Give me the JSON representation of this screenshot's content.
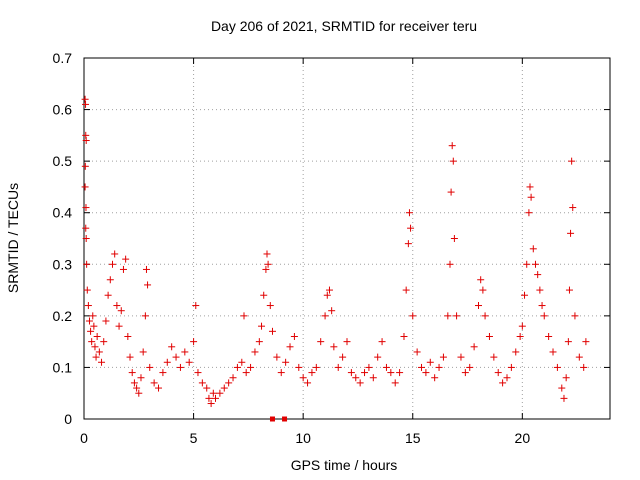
{
  "chart_data": {
    "type": "scatter",
    "title": "Day 206 of 2021, SRMTID for receiver teru",
    "xlabel": "GPS time / hours",
    "ylabel": "SRMTID / TECUs",
    "xlim": [
      0,
      24
    ],
    "ylim": [
      0,
      0.7
    ],
    "grid": true,
    "color": "#e00000",
    "xticks": [
      0,
      5,
      10,
      15,
      20
    ],
    "yticks": [
      0,
      0.1,
      0.2,
      0.3,
      0.4,
      0.5,
      0.6,
      0.7
    ],
    "xtick_labels": [
      "0",
      "5",
      "10",
      "15",
      "20"
    ],
    "ytick_labels": [
      "0",
      "0.1",
      "0.2",
      "0.3",
      "0.4",
      "0.5",
      "0.6",
      "0.7"
    ],
    "series": [
      {
        "name": "SRMTID",
        "marker": "plus",
        "points": [
          [
            0.05,
            0.62
          ],
          [
            0.07,
            0.61
          ],
          [
            0.08,
            0.55
          ],
          [
            0.1,
            0.54
          ],
          [
            0.06,
            0.49
          ],
          [
            0.05,
            0.45
          ],
          [
            0.09,
            0.41
          ],
          [
            0.08,
            0.37
          ],
          [
            0.1,
            0.35
          ],
          [
            0.12,
            0.3
          ],
          [
            0.15,
            0.25
          ],
          [
            0.2,
            0.22
          ],
          [
            0.25,
            0.19
          ],
          [
            0.3,
            0.17
          ],
          [
            0.35,
            0.15
          ],
          [
            0.4,
            0.2
          ],
          [
            0.45,
            0.18
          ],
          [
            0.5,
            0.14
          ],
          [
            0.55,
            0.12
          ],
          [
            0.6,
            0.16
          ],
          [
            0.7,
            0.13
          ],
          [
            0.8,
            0.11
          ],
          [
            0.9,
            0.15
          ],
          [
            1.0,
            0.19
          ],
          [
            1.1,
            0.24
          ],
          [
            1.2,
            0.27
          ],
          [
            1.3,
            0.3
          ],
          [
            1.4,
            0.32
          ],
          [
            1.5,
            0.22
          ],
          [
            1.6,
            0.18
          ],
          [
            1.7,
            0.21
          ],
          [
            1.8,
            0.29
          ],
          [
            1.9,
            0.31
          ],
          [
            2.0,
            0.16
          ],
          [
            2.1,
            0.12
          ],
          [
            2.2,
            0.09
          ],
          [
            2.3,
            0.07
          ],
          [
            2.4,
            0.06
          ],
          [
            2.5,
            0.05
          ],
          [
            2.6,
            0.08
          ],
          [
            2.7,
            0.13
          ],
          [
            2.8,
            0.2
          ],
          [
            2.85,
            0.29
          ],
          [
            2.9,
            0.26
          ],
          [
            3.0,
            0.1
          ],
          [
            3.2,
            0.07
          ],
          [
            3.4,
            0.06
          ],
          [
            3.6,
            0.09
          ],
          [
            3.8,
            0.11
          ],
          [
            4.0,
            0.14
          ],
          [
            4.2,
            0.12
          ],
          [
            4.4,
            0.1
          ],
          [
            4.6,
            0.13
          ],
          [
            4.8,
            0.11
          ],
          [
            5.0,
            0.15
          ],
          [
            5.1,
            0.22
          ],
          [
            5.2,
            0.09
          ],
          [
            5.4,
            0.07
          ],
          [
            5.6,
            0.06
          ],
          [
            5.7,
            0.04
          ],
          [
            5.8,
            0.03
          ],
          [
            5.9,
            0.05
          ],
          [
            6.0,
            0.04
          ],
          [
            6.2,
            0.05
          ],
          [
            6.4,
            0.06
          ],
          [
            6.6,
            0.07
          ],
          [
            6.8,
            0.08
          ],
          [
            7.0,
            0.1
          ],
          [
            7.2,
            0.11
          ],
          [
            7.3,
            0.2
          ],
          [
            7.4,
            0.09
          ],
          [
            7.6,
            0.1
          ],
          [
            7.8,
            0.13
          ],
          [
            8.0,
            0.15
          ],
          [
            8.1,
            0.18
          ],
          [
            8.2,
            0.24
          ],
          [
            8.3,
            0.29
          ],
          [
            8.35,
            0.32
          ],
          [
            8.4,
            0.3
          ],
          [
            8.5,
            0.22
          ],
          [
            8.6,
            0.17
          ],
          [
            8.8,
            0.12
          ],
          [
            9.0,
            0.09
          ],
          [
            9.2,
            0.11
          ],
          [
            9.4,
            0.14
          ],
          [
            9.6,
            0.16
          ],
          [
            9.8,
            0.1
          ],
          [
            10.0,
            0.08
          ],
          [
            10.2,
            0.07
          ],
          [
            10.4,
            0.09
          ],
          [
            10.6,
            0.1
          ],
          [
            10.8,
            0.15
          ],
          [
            11.0,
            0.2
          ],
          [
            11.1,
            0.24
          ],
          [
            11.2,
            0.25
          ],
          [
            11.3,
            0.21
          ],
          [
            11.4,
            0.14
          ],
          [
            11.6,
            0.1
          ],
          [
            11.8,
            0.12
          ],
          [
            12.0,
            0.15
          ],
          [
            12.2,
            0.09
          ],
          [
            12.4,
            0.08
          ],
          [
            12.6,
            0.07
          ],
          [
            12.8,
            0.09
          ],
          [
            13.0,
            0.1
          ],
          [
            13.2,
            0.08
          ],
          [
            13.4,
            0.12
          ],
          [
            13.6,
            0.15
          ],
          [
            13.8,
            0.1
          ],
          [
            14.0,
            0.09
          ],
          [
            14.2,
            0.07
          ],
          [
            14.4,
            0.09
          ],
          [
            14.6,
            0.16
          ],
          [
            14.7,
            0.25
          ],
          [
            14.8,
            0.34
          ],
          [
            14.85,
            0.4
          ],
          [
            14.9,
            0.37
          ],
          [
            15.0,
            0.2
          ],
          [
            15.2,
            0.13
          ],
          [
            15.4,
            0.1
          ],
          [
            15.6,
            0.09
          ],
          [
            15.8,
            0.11
          ],
          [
            16.0,
            0.08
          ],
          [
            16.2,
            0.1
          ],
          [
            16.4,
            0.12
          ],
          [
            16.6,
            0.2
          ],
          [
            16.7,
            0.3
          ],
          [
            16.75,
            0.44
          ],
          [
            16.8,
            0.53
          ],
          [
            16.85,
            0.5
          ],
          [
            16.9,
            0.35
          ],
          [
            17.0,
            0.2
          ],
          [
            17.2,
            0.12
          ],
          [
            17.4,
            0.09
          ],
          [
            17.6,
            0.1
          ],
          [
            17.8,
            0.14
          ],
          [
            18.0,
            0.22
          ],
          [
            18.1,
            0.27
          ],
          [
            18.2,
            0.25
          ],
          [
            18.3,
            0.2
          ],
          [
            18.5,
            0.16
          ],
          [
            18.7,
            0.12
          ],
          [
            18.9,
            0.09
          ],
          [
            19.1,
            0.07
          ],
          [
            19.3,
            0.08
          ],
          [
            19.5,
            0.1
          ],
          [
            19.7,
            0.13
          ],
          [
            19.9,
            0.16
          ],
          [
            20.0,
            0.18
          ],
          [
            20.1,
            0.24
          ],
          [
            20.2,
            0.3
          ],
          [
            20.3,
            0.4
          ],
          [
            20.35,
            0.45
          ],
          [
            20.4,
            0.43
          ],
          [
            20.5,
            0.33
          ],
          [
            20.6,
            0.3
          ],
          [
            20.7,
            0.28
          ],
          [
            20.8,
            0.25
          ],
          [
            20.9,
            0.22
          ],
          [
            21.0,
            0.2
          ],
          [
            21.2,
            0.16
          ],
          [
            21.4,
            0.13
          ],
          [
            21.6,
            0.1
          ],
          [
            21.8,
            0.06
          ],
          [
            21.9,
            0.04
          ],
          [
            22.0,
            0.08
          ],
          [
            22.1,
            0.15
          ],
          [
            22.15,
            0.25
          ],
          [
            22.2,
            0.36
          ],
          [
            22.25,
            0.5
          ],
          [
            22.3,
            0.41
          ],
          [
            22.4,
            0.2
          ],
          [
            22.6,
            0.12
          ],
          [
            22.8,
            0.1
          ],
          [
            22.9,
            0.15
          ]
        ]
      },
      {
        "name": "SRMTID (zero)",
        "marker": "square",
        "points": [
          [
            8.6,
            0
          ],
          [
            9.15,
            0
          ]
        ]
      }
    ]
  }
}
